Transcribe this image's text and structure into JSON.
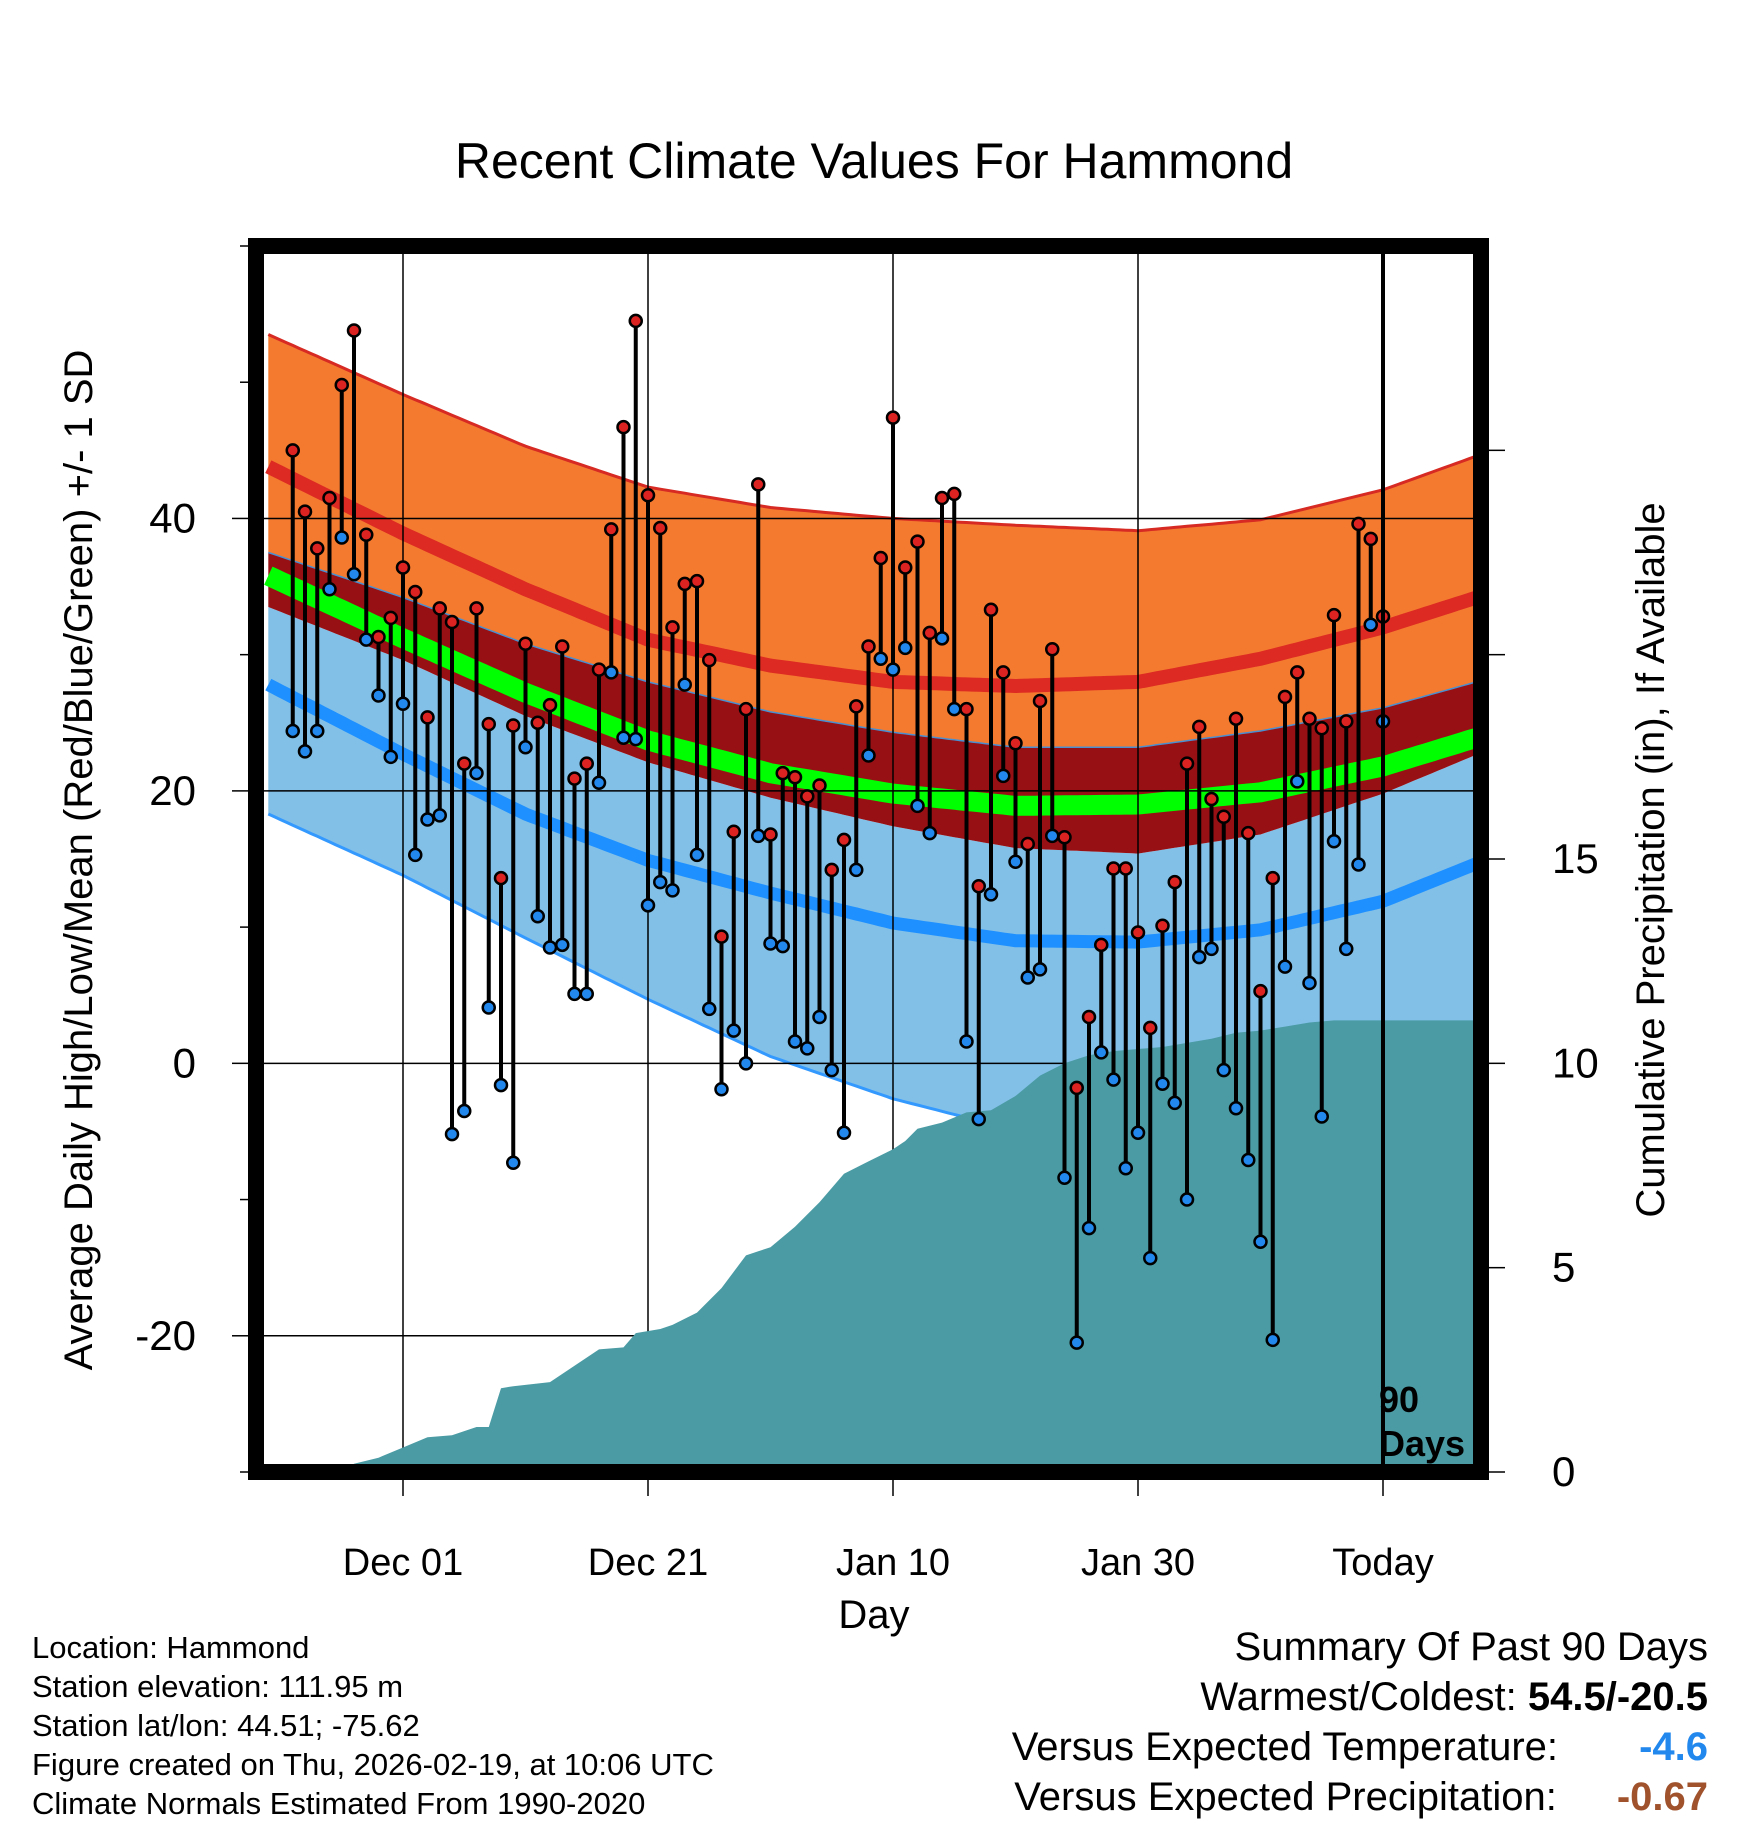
{
  "chart_data": {
    "type": "line",
    "title": "Recent Climate Values For Hammond",
    "xlabel": "Day",
    "ylabel": "Average Daily High/Low/Mean (Red/Blue/Green) +/- 1 SD",
    "y2label": "Cumulative Precipitation (in), If Available",
    "xlim": [
      -12,
      88
    ],
    "ylim": [
      -30,
      60
    ],
    "y2lim": [
      0,
      30
    ],
    "yticks": [
      -20,
      0,
      20,
      40
    ],
    "y2ticks": [
      0,
      5,
      10,
      15
    ],
    "xticks": [
      {
        "day": 0,
        "label": "Dec 01"
      },
      {
        "day": 20,
        "label": "Dec 21"
      },
      {
        "day": 40,
        "label": "Jan 10"
      },
      {
        "day": 60,
        "label": "Jan 30"
      },
      {
        "day": 80,
        "label": "Today"
      }
    ],
    "today_day": 80,
    "window_label": [
      "90",
      "Days"
    ],
    "normals": {
      "x": [
        -11,
        0,
        10,
        20,
        30,
        40,
        50,
        60,
        70,
        80,
        88
      ],
      "high_mean": [
        43.8,
        38.9,
        34.8,
        31.1,
        29.2,
        28.0,
        27.7,
        28.0,
        29.7,
        32.0,
        34.3
      ],
      "high_upper": [
        53.5,
        49.1,
        45.3,
        42.3,
        40.8,
        40.0,
        39.5,
        39.1,
        39.9,
        42.1,
        44.7
      ],
      "high_lower": [
        37.5,
        34.2,
        30.8,
        28.0,
        25.8,
        24.3,
        23.2,
        23.2,
        24.4,
        26.1,
        28.1
      ],
      "mean_mean": [
        35.8,
        31.2,
        27.2,
        23.7,
        21.3,
        19.8,
        18.9,
        19.0,
        19.9,
        21.8,
        24.0
      ],
      "low_mean": [
        27.8,
        22.7,
        18.3,
        14.9,
        12.5,
        10.3,
        9.0,
        8.9,
        9.8,
        11.9,
        14.8
      ],
      "low_upper": [
        33.5,
        29.6,
        25.5,
        22.1,
        19.5,
        17.4,
        15.8,
        15.4,
        16.8,
        19.8,
        22.8
      ],
      "low_lower": [
        18.3,
        13.8,
        9.2,
        4.7,
        0.5,
        -2.6,
        -4.9,
        -5.0,
        -3.0,
        -0.6,
        2.1
      ]
    },
    "series": [
      {
        "name": "High",
        "color": "#dd2222",
        "values": [
          45.0,
          40.5,
          37.8,
          41.5,
          49.8,
          53.8,
          38.8,
          31.3,
          32.7,
          36.4,
          34.6,
          25.4,
          33.4,
          32.4,
          22.0,
          33.4,
          24.9,
          13.6,
          24.8,
          30.8,
          25.0,
          26.3,
          30.6,
          20.9,
          22.0,
          28.9,
          39.2,
          46.7,
          54.5,
          41.7,
          39.3,
          32.0,
          35.2,
          35.4,
          29.6,
          9.3,
          17.0,
          26.0,
          42.5,
          16.8,
          21.3,
          21.0,
          19.6,
          20.4,
          14.2,
          16.4,
          26.2,
          30.6,
          37.1,
          47.4,
          36.4,
          38.3,
          31.6,
          41.5,
          41.8,
          26.0,
          13.0,
          33.3,
          28.7,
          23.5,
          16.1,
          26.6,
          30.4,
          16.6,
          -1.8,
          3.4,
          8.7,
          14.3,
          14.3,
          9.6,
          2.6,
          10.1,
          13.3,
          22.0,
          24.7,
          19.4,
          18.1,
          25.3,
          16.9,
          5.3,
          13.6,
          26.9,
          28.7,
          25.3,
          24.6,
          32.9,
          25.1,
          39.6,
          38.5,
          32.8
        ]
      },
      {
        "name": "Low",
        "color": "#2288ee",
        "values": [
          24.4,
          22.9,
          24.4,
          34.8,
          38.6,
          35.9,
          31.1,
          27.0,
          22.5,
          26.4,
          15.3,
          17.9,
          18.2,
          -5.2,
          -3.5,
          21.3,
          4.1,
          -1.6,
          -7.3,
          23.2,
          10.8,
          8.5,
          8.7,
          5.1,
          5.1,
          20.6,
          28.7,
          23.9,
          23.8,
          11.6,
          13.3,
          12.7,
          27.8,
          15.3,
          4.0,
          -1.9,
          2.4,
          0.0,
          16.7,
          8.8,
          8.6,
          1.6,
          1.1,
          3.4,
          -0.5,
          -5.1,
          14.2,
          22.6,
          29.7,
          28.9,
          30.5,
          18.9,
          16.9,
          31.2,
          26.0,
          1.6,
          -4.1,
          12.4,
          21.1,
          14.8,
          6.3,
          6.9,
          16.7,
          -8.4,
          -20.5,
          -12.1,
          0.8,
          -1.2,
          -7.7,
          -5.1,
          -14.3,
          -1.5,
          -2.9,
          -10.0,
          7.8,
          8.4,
          -0.5,
          -3.3,
          -7.1,
          -13.1,
          -20.3,
          7.1,
          20.7,
          5.9,
          -3.9,
          16.3,
          8.4,
          14.6,
          32.2,
          25.1
        ]
      }
    ],
    "precip": {
      "x": [
        -11,
        -5,
        -4,
        -2,
        0,
        2,
        4,
        6,
        7,
        8,
        9,
        12,
        16,
        18,
        19,
        21,
        22,
        24,
        26,
        28,
        29,
        30,
        32,
        34,
        36,
        38,
        40,
        41,
        42,
        44,
        46,
        48,
        50,
        52,
        54,
        56,
        58,
        60,
        62,
        64,
        66,
        68,
        70,
        72,
        74,
        76,
        78,
        80,
        88
      ],
      "values": [
        0,
        0,
        0.2,
        0.35,
        0.6,
        0.85,
        0.9,
        1.1,
        1.1,
        2.05,
        2.1,
        2.2,
        3.0,
        3.05,
        3.4,
        3.5,
        3.6,
        3.9,
        4.5,
        5.3,
        5.4,
        5.5,
        6.0,
        6.6,
        7.3,
        7.6,
        7.9,
        8.1,
        8.4,
        8.55,
        8.8,
        8.85,
        9.2,
        9.7,
        10.0,
        10.2,
        10.3,
        10.35,
        10.4,
        10.5,
        10.6,
        10.75,
        10.8,
        10.9,
        11.0,
        11.05,
        11.05,
        11.05,
        11.05
      ]
    }
  },
  "info": {
    "location": "Location: Hammond",
    "elevation": "Station elevation: 111.95 m",
    "latlon": "Station lat/lon: 44.51; -75.62",
    "created": "Figure created on Thu, 2026-02-19, at 10:06 UTC",
    "normals": "Climate Normals Estimated From 1990-2020"
  },
  "summary": {
    "title": "Summary Of Past 90 Days",
    "warm_cold_label": "Warmest/Coldest:",
    "warm_cold_value": "54.5/-20.5",
    "temp_label": "Versus Expected Temperature:",
    "temp_value": "-4.6",
    "temp_color": "#2288ee",
    "precip_label": "Versus Expected Precipitation:",
    "precip_value": "-0.67",
    "precip_color": "#a0522d"
  },
  "colors": {
    "high_band": "#f47a30",
    "high_mean": "#dd2a22",
    "middle_band": "#971014",
    "mean_line": "#00ff00",
    "low_band": "#82c0e8",
    "low_mean": "#1e90ff",
    "low_edge": "#3399ff",
    "precip": "#4a9ba4"
  }
}
